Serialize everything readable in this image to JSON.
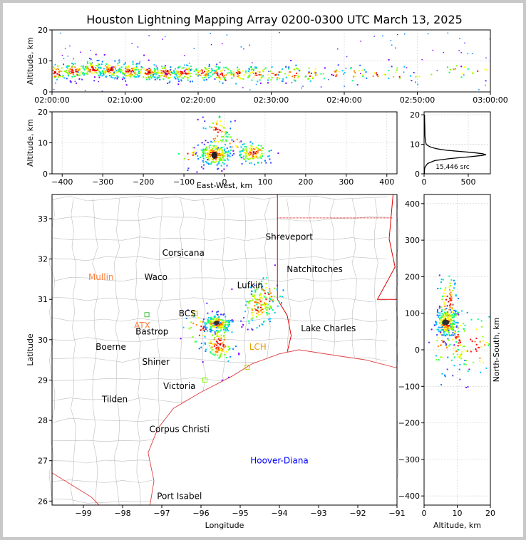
{
  "title": "Houston Lightning Mapping Array 0200-0300 UTC March 13, 2025",
  "chart_data": [
    {
      "type": "scatter",
      "panel": "time-altitude",
      "xlabel": "",
      "ylabel": "Altitude, km",
      "x_ticks": [
        "02:00:00",
        "02:10:00",
        "02:20:00",
        "02:30:00",
        "02:40:00",
        "02:50:00",
        "03:00:00"
      ],
      "xlim": [
        0,
        60
      ],
      "ylim": [
        0,
        20
      ],
      "y_ticks": [
        0,
        10,
        20
      ],
      "clusters": [
        {
          "t": 0.5,
          "alt": 6.5,
          "n": 60
        },
        {
          "t": 3,
          "alt": 7,
          "n": 70
        },
        {
          "t": 5.5,
          "alt": 7.5,
          "n": 80
        },
        {
          "t": 8,
          "alt": 7.5,
          "n": 80
        },
        {
          "t": 10.5,
          "alt": 7,
          "n": 80
        },
        {
          "t": 13,
          "alt": 6.5,
          "n": 70
        },
        {
          "t": 15.5,
          "alt": 6.5,
          "n": 70
        },
        {
          "t": 18,
          "alt": 6.5,
          "n": 70
        },
        {
          "t": 20.5,
          "alt": 6.5,
          "n": 60
        },
        {
          "t": 23,
          "alt": 6,
          "n": 50
        },
        {
          "t": 25.5,
          "alt": 6,
          "n": 40
        },
        {
          "t": 28,
          "alt": 6,
          "n": 35
        },
        {
          "t": 30.5,
          "alt": 6,
          "n": 30
        },
        {
          "t": 33,
          "alt": 6,
          "n": 25
        },
        {
          "t": 35.5,
          "alt": 6,
          "n": 20
        },
        {
          "t": 38.5,
          "alt": 6,
          "n": 15
        },
        {
          "t": 41.5,
          "alt": 6,
          "n": 15
        },
        {
          "t": 44.5,
          "alt": 6,
          "n": 12
        },
        {
          "t": 47.5,
          "alt": 6,
          "n": 10
        },
        {
          "t": 51,
          "alt": 5,
          "n": 6
        },
        {
          "t": 55.5,
          "alt": 7,
          "n": 10
        },
        {
          "t": 58.5,
          "alt": 7,
          "n": 8
        }
      ]
    },
    {
      "type": "scatter",
      "panel": "east-west-altitude",
      "xlabel": "East-West, km",
      "ylabel": "Altitude, km",
      "xlim": [
        -425,
        425
      ],
      "ylim": [
        0,
        20
      ],
      "x_ticks": [
        -400,
        -300,
        -200,
        -100,
        0,
        100,
        200,
        300,
        400
      ],
      "y_ticks": [
        0,
        10,
        20
      ],
      "clusters": [
        {
          "x": -25,
          "alt": 6.5,
          "n": 220
        },
        {
          "x": -20,
          "alt": 14,
          "n": 60
        },
        {
          "x": 70,
          "alt": 7,
          "n": 120
        },
        {
          "x": -85,
          "alt": 6,
          "n": 15
        },
        {
          "x": 20,
          "alt": 10,
          "n": 20
        }
      ]
    },
    {
      "type": "line",
      "panel": "altitude-histogram",
      "annotation": "15,446 src",
      "xlim": [
        0,
        750
      ],
      "ylim": [
        0,
        21
      ],
      "x_ticks": [
        0,
        500
      ],
      "y_ticks": [
        0,
        10,
        20
      ],
      "x": [
        3,
        4,
        5,
        8,
        15,
        40,
        120,
        300,
        520,
        650,
        700,
        660,
        560,
        400,
        250,
        140,
        80,
        45,
        25,
        15,
        12,
        10,
        9,
        8,
        7,
        6,
        5
      ],
      "y": [
        0,
        1,
        1.5,
        2,
        2.5,
        3.5,
        4.5,
        5.2,
        5.8,
        6.2,
        6.5,
        6.8,
        7.2,
        7.6,
        8,
        8.5,
        9,
        9.5,
        10,
        11,
        12,
        13,
        15,
        16,
        17,
        18,
        20
      ]
    },
    {
      "type": "scatter",
      "panel": "plan-view-map",
      "xlabel": "Longitude",
      "ylabel": "Latitude",
      "xlim": [
        -99.8,
        -91
      ],
      "ylim": [
        25.9,
        33.6
      ],
      "x_ticks": [
        -99,
        -98,
        -97,
        -96,
        -95,
        -94,
        -93,
        -92,
        -91
      ],
      "y_ticks": [
        26,
        27,
        28,
        29,
        30,
        31,
        32,
        33
      ],
      "cities": [
        {
          "name": "Shreveport",
          "lon": -93.75,
          "lat": 32.55,
          "color": "#000000"
        },
        {
          "name": "Corsicana",
          "lon": -96.45,
          "lat": 32.15,
          "color": "#000000"
        },
        {
          "name": "Natchitoches",
          "lon": -93.1,
          "lat": 31.75,
          "color": "#000000"
        },
        {
          "name": "Mullin",
          "lon": -98.55,
          "lat": 31.55,
          "color": "#ff8040"
        },
        {
          "name": "Waco",
          "lon": -97.15,
          "lat": 31.55,
          "color": "#000000"
        },
        {
          "name": "Lufkin",
          "lon": -94.75,
          "lat": 31.35,
          "color": "#000000"
        },
        {
          "name": "BCS",
          "lon": -96.35,
          "lat": 30.65,
          "color": "#000000"
        },
        {
          "name": "ATX",
          "lon": -97.5,
          "lat": 30.35,
          "color": "#ff8040"
        },
        {
          "name": "Bastrop",
          "lon": -97.25,
          "lat": 30.2,
          "color": "#000000"
        },
        {
          "name": "Lake Charles",
          "lon": -92.75,
          "lat": 30.28,
          "color": "#000000"
        },
        {
          "name": "Boerne",
          "lon": -98.3,
          "lat": 29.82,
          "color": "#000000"
        },
        {
          "name": "LCH",
          "lon": -94.55,
          "lat": 29.82,
          "color": "#e8a000"
        },
        {
          "name": "Shiner",
          "lon": -97.15,
          "lat": 29.45,
          "color": "#000000"
        },
        {
          "name": "Victoria",
          "lon": -96.55,
          "lat": 28.85,
          "color": "#000000"
        },
        {
          "name": "Tilden",
          "lon": -98.2,
          "lat": 28.52,
          "color": "#000000"
        },
        {
          "name": "Corpus Christi",
          "lon": -96.55,
          "lat": 27.78,
          "color": "#000000"
        },
        {
          "name": "Hoover-Diana",
          "lon": -94.0,
          "lat": 27.0,
          "color": "#0000ff"
        },
        {
          "name": "Port Isabel",
          "lon": -96.55,
          "lat": 26.12,
          "color": "#000000"
        }
      ],
      "stations": [
        {
          "lon": -97.38,
          "lat": 30.62,
          "color": "#40c040"
        },
        {
          "lon": -96.15,
          "lat": 30.65,
          "color": "#c0c000"
        },
        {
          "lon": -94.82,
          "lat": 29.32,
          "color": "#c0c000"
        },
        {
          "lon": -95.9,
          "lat": 29.0,
          "color": "#80ff00"
        }
      ],
      "clusters": [
        {
          "lon": -95.6,
          "lat": 30.42,
          "n": 180
        },
        {
          "lon": -95.55,
          "lat": 29.9,
          "n": 120
        },
        {
          "lon": -94.55,
          "lat": 30.85,
          "n": 110
        },
        {
          "lon": -94.35,
          "lat": 31.1,
          "n": 60
        },
        {
          "lon": -96.05,
          "lat": 30.3,
          "n": 30
        }
      ]
    },
    {
      "type": "scatter",
      "panel": "altitude-north-south",
      "xlabel": "Altitude, km",
      "ylabel": "North-South, km",
      "xlim": [
        0,
        20
      ],
      "ylim": [
        -425,
        425
      ],
      "x_ticks": [
        0,
        10,
        20
      ],
      "y_ticks": [
        -400,
        -300,
        -200,
        -100,
        0,
        100,
        200,
        300,
        400
      ],
      "clusters": [
        {
          "alt": 6.5,
          "ns": 75,
          "n": 200
        },
        {
          "alt": 7,
          "ns": 130,
          "n": 90
        },
        {
          "alt": 10,
          "ns": 30,
          "n": 50
        },
        {
          "alt": 15,
          "ns": 10,
          "n": 60
        },
        {
          "alt": 5.5,
          "ns": 15,
          "n": 30
        }
      ]
    }
  ]
}
